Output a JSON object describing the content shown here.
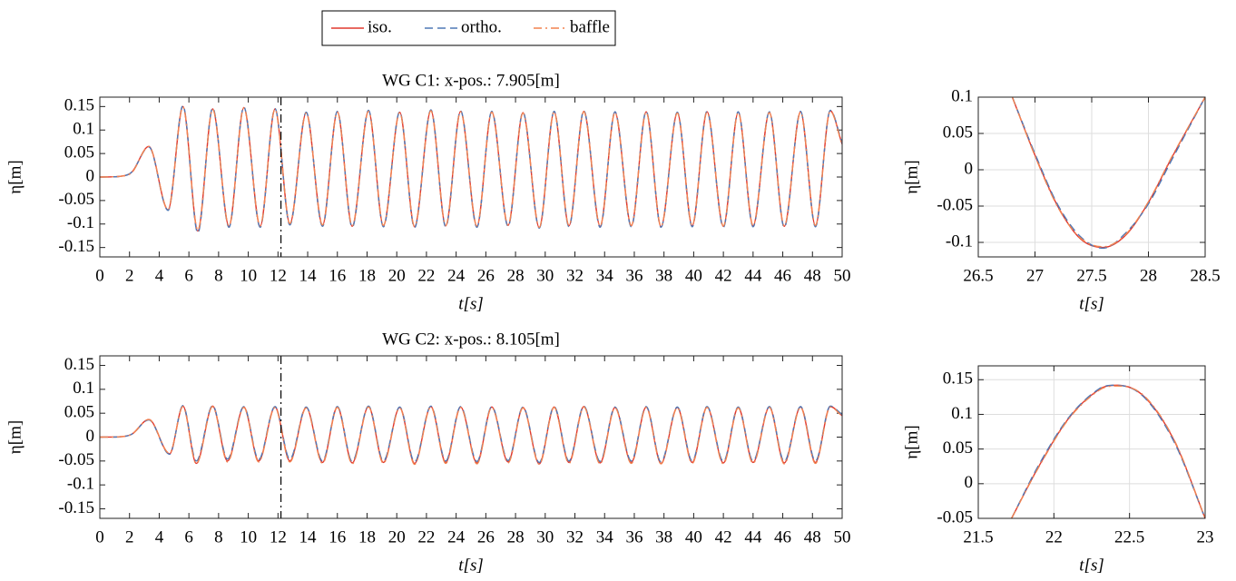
{
  "chart_data": [
    {
      "type": "line",
      "title": "WG C1: x-pos.: 7.905[m]",
      "xlabel": "t[s]",
      "ylabel": "η[m]",
      "x": [
        0,
        1.5,
        2.2,
        3.3,
        4.6,
        5.6,
        6.6,
        7.6,
        8.7,
        9.7,
        10.8,
        11.8,
        12.8,
        13.9,
        15.0,
        16.0,
        17.0,
        18.1,
        19.1,
        20.2,
        21.2,
        22.3,
        23.3,
        24.3,
        25.4,
        26.4,
        27.5,
        28.5,
        29.6,
        30.6,
        31.6,
        32.6,
        33.7,
        34.7,
        35.8,
        36.8,
        37.8,
        38.9,
        39.9,
        40.9,
        42.0,
        43.0,
        44.0,
        45.1,
        46.1,
        47.2,
        48.2,
        49.2,
        50
      ],
      "series": [
        {
          "name": "iso.",
          "color": "#e0382f",
          "dash": "solid",
          "values": [
            0,
            0.002,
            0.012,
            0.065,
            -0.07,
            0.15,
            -0.115,
            0.145,
            -0.105,
            0.148,
            -0.105,
            0.145,
            -0.1,
            0.137,
            -0.103,
            0.139,
            -0.105,
            0.141,
            -0.104,
            0.138,
            -0.106,
            0.142,
            -0.104,
            0.14,
            -0.105,
            0.139,
            -0.103,
            0.137,
            -0.108,
            0.139,
            -0.104,
            0.14,
            -0.105,
            0.138,
            -0.104,
            0.139,
            -0.106,
            0.137,
            -0.104,
            0.139,
            -0.105,
            0.138,
            -0.104,
            0.138,
            -0.105,
            0.139,
            -0.104,
            0.141,
            0.07
          ]
        },
        {
          "name": "ortho.",
          "color": "#4f78b5",
          "dash": "dashed",
          "values": [
            0,
            0.002,
            0.012,
            0.064,
            -0.071,
            0.152,
            -0.119,
            0.147,
            -0.107,
            0.149,
            -0.107,
            0.146,
            -0.102,
            0.138,
            -0.105,
            0.14,
            -0.107,
            0.142,
            -0.106,
            0.139,
            -0.108,
            0.143,
            -0.106,
            0.141,
            -0.107,
            0.14,
            -0.105,
            0.138,
            -0.109,
            0.14,
            -0.106,
            0.141,
            -0.107,
            0.139,
            -0.106,
            0.14,
            -0.107,
            0.138,
            -0.106,
            0.14,
            -0.107,
            0.139,
            -0.106,
            0.139,
            -0.107,
            0.14,
            -0.106,
            0.142,
            0.072
          ]
        },
        {
          "name": "baffle",
          "color": "#f2824f",
          "dash": "dashdot",
          "values": [
            0,
            0.002,
            0.011,
            0.065,
            -0.069,
            0.149,
            -0.113,
            0.144,
            -0.104,
            0.147,
            -0.104,
            0.144,
            -0.099,
            0.136,
            -0.102,
            0.138,
            -0.104,
            0.14,
            -0.103,
            0.137,
            -0.105,
            0.141,
            -0.103,
            0.139,
            -0.104,
            0.138,
            -0.102,
            0.136,
            -0.107,
            0.138,
            -0.103,
            0.139,
            -0.104,
            0.137,
            -0.103,
            0.138,
            -0.105,
            0.136,
            -0.103,
            0.138,
            -0.104,
            0.137,
            -0.103,
            0.137,
            -0.104,
            0.138,
            -0.103,
            0.14,
            0.068
          ]
        }
      ],
      "vline": 12.2,
      "xlim": [
        0,
        50
      ],
      "xticks": [
        0,
        2,
        4,
        6,
        8,
        10,
        12,
        14,
        16,
        18,
        20,
        22,
        24,
        26,
        28,
        30,
        32,
        34,
        36,
        38,
        40,
        42,
        44,
        46,
        48,
        50
      ],
      "ylim": [
        -0.17,
        0.17
      ],
      "yticks": [
        -0.15,
        -0.1,
        -0.05,
        0,
        0.05,
        0.1,
        0.15
      ],
      "grid": false
    },
    {
      "type": "line",
      "title": "WG C2: x-pos.: 8.105[m]",
      "xlabel": "t[s]",
      "ylabel": "η[m]",
      "x": [
        0,
        1.5,
        2.2,
        3.3,
        4.7,
        5.6,
        6.5,
        7.6,
        8.6,
        9.7,
        10.7,
        11.8,
        12.8,
        13.9,
        15.0,
        16.0,
        17.0,
        18.1,
        19.1,
        20.2,
        21.2,
        22.3,
        23.3,
        24.3,
        25.4,
        26.4,
        27.5,
        28.5,
        29.6,
        30.6,
        31.6,
        32.6,
        33.7,
        34.7,
        35.8,
        36.8,
        37.8,
        38.9,
        39.9,
        40.9,
        42.0,
        43.0,
        44.0,
        45.1,
        46.1,
        47.2,
        48.2,
        49.2,
        50
      ],
      "series": [
        {
          "color": "#e0382f",
          "dash": "solid",
          "values": [
            0,
            0.001,
            0.007,
            0.037,
            -0.035,
            0.065,
            -0.055,
            0.065,
            -0.05,
            0.063,
            -0.05,
            0.063,
            -0.05,
            0.062,
            -0.053,
            0.063,
            -0.054,
            0.064,
            -0.053,
            0.062,
            -0.055,
            0.064,
            -0.053,
            0.063,
            -0.054,
            0.063,
            -0.052,
            0.062,
            -0.056,
            0.063,
            -0.053,
            0.064,
            -0.054,
            0.062,
            -0.053,
            0.063,
            -0.055,
            0.062,
            -0.053,
            0.063,
            -0.054,
            0.062,
            -0.053,
            0.063,
            -0.054,
            0.063,
            -0.053,
            0.064,
            0.045
          ]
        },
        {
          "color": "#4f78b5",
          "dash": "dashed",
          "values": [
            0,
            0.001,
            0.007,
            0.036,
            -0.036,
            0.066,
            -0.05,
            0.066,
            -0.046,
            0.064,
            -0.047,
            0.064,
            -0.046,
            0.063,
            -0.05,
            0.064,
            -0.051,
            0.065,
            -0.05,
            0.063,
            -0.052,
            0.065,
            -0.05,
            0.064,
            -0.051,
            0.064,
            -0.049,
            0.063,
            -0.053,
            0.064,
            -0.05,
            0.065,
            -0.051,
            0.063,
            -0.05,
            0.064,
            -0.052,
            0.063,
            -0.05,
            0.064,
            -0.051,
            0.063,
            -0.05,
            0.064,
            -0.051,
            0.064,
            -0.05,
            0.065,
            0.047
          ]
        },
        {
          "color": "#f2824f",
          "dash": "dashdot",
          "values": [
            0,
            0.001,
            0.007,
            0.037,
            -0.034,
            0.064,
            -0.056,
            0.064,
            -0.052,
            0.062,
            -0.052,
            0.062,
            -0.052,
            0.061,
            -0.055,
            0.062,
            -0.056,
            0.063,
            -0.055,
            0.061,
            -0.057,
            0.063,
            -0.055,
            0.062,
            -0.056,
            0.062,
            -0.054,
            0.061,
            -0.057,
            0.062,
            -0.055,
            0.063,
            -0.056,
            0.061,
            -0.055,
            0.062,
            -0.056,
            0.061,
            -0.055,
            0.062,
            -0.056,
            0.061,
            -0.055,
            0.062,
            -0.056,
            0.062,
            -0.055,
            0.063,
            0.044
          ]
        }
      ],
      "vline": 12.2,
      "xlim": [
        0,
        50
      ],
      "xticks": [
        0,
        2,
        4,
        6,
        8,
        10,
        12,
        14,
        16,
        18,
        20,
        22,
        24,
        26,
        28,
        30,
        32,
        34,
        36,
        38,
        40,
        42,
        44,
        46,
        48,
        50
      ],
      "ylim": [
        -0.17,
        0.17
      ],
      "yticks": [
        -0.15,
        -0.1,
        -0.05,
        0,
        0.05,
        0.1,
        0.15
      ],
      "grid": false
    },
    {
      "type": "line",
      "xlabel": "t[s]",
      "ylabel": "η[m]",
      "x": [
        26.8,
        27.0,
        27.2,
        27.4,
        27.6,
        27.8,
        28.0,
        28.2,
        28.5
      ],
      "series": [
        {
          "color": "#e0382f",
          "dash": "solid",
          "values": [
            0.1,
            0.02,
            -0.05,
            -0.095,
            -0.107,
            -0.09,
            -0.045,
            0.015,
            0.1
          ]
        },
        {
          "color": "#4f78b5",
          "dash": "dashed",
          "values": [
            0.1,
            0.022,
            -0.048,
            -0.092,
            -0.108,
            -0.087,
            -0.047,
            0.012,
            0.1
          ]
        },
        {
          "color": "#f2824f",
          "dash": "dashdot",
          "values": [
            0.1,
            0.019,
            -0.051,
            -0.094,
            -0.106,
            -0.089,
            -0.044,
            0.016,
            0.1
          ]
        }
      ],
      "xlim": [
        26.5,
        28.5
      ],
      "xticks": [
        26.5,
        27,
        27.5,
        28,
        28.5
      ],
      "ylim": [
        -0.12,
        0.1
      ],
      "yticks": [
        -0.1,
        -0.05,
        0,
        0.05,
        0.1
      ],
      "grid": true
    },
    {
      "type": "line",
      "xlabel": "t[s]",
      "ylabel": "η[m]",
      "x": [
        21.72,
        21.9,
        22.1,
        22.3,
        22.42,
        22.6,
        22.8,
        23.0
      ],
      "series": [
        {
          "color": "#e0382f",
          "dash": "solid",
          "values": [
            -0.05,
            0.025,
            0.095,
            0.136,
            0.142,
            0.125,
            0.06,
            -0.05
          ]
        },
        {
          "color": "#4f78b5",
          "dash": "dashed",
          "values": [
            -0.05,
            0.027,
            0.096,
            0.137,
            0.142,
            0.124,
            0.058,
            -0.05
          ]
        },
        {
          "color": "#f2824f",
          "dash": "dashdot",
          "values": [
            -0.05,
            0.024,
            0.094,
            0.135,
            0.141,
            0.126,
            0.061,
            -0.05
          ]
        }
      ],
      "xlim": [
        21.5,
        23
      ],
      "xticks": [
        21.5,
        22,
        22.5,
        23
      ],
      "ylim": [
        -0.05,
        0.17
      ],
      "yticks": [
        -0.05,
        0,
        0.05,
        0.1,
        0.15
      ],
      "grid": true
    }
  ]
}
